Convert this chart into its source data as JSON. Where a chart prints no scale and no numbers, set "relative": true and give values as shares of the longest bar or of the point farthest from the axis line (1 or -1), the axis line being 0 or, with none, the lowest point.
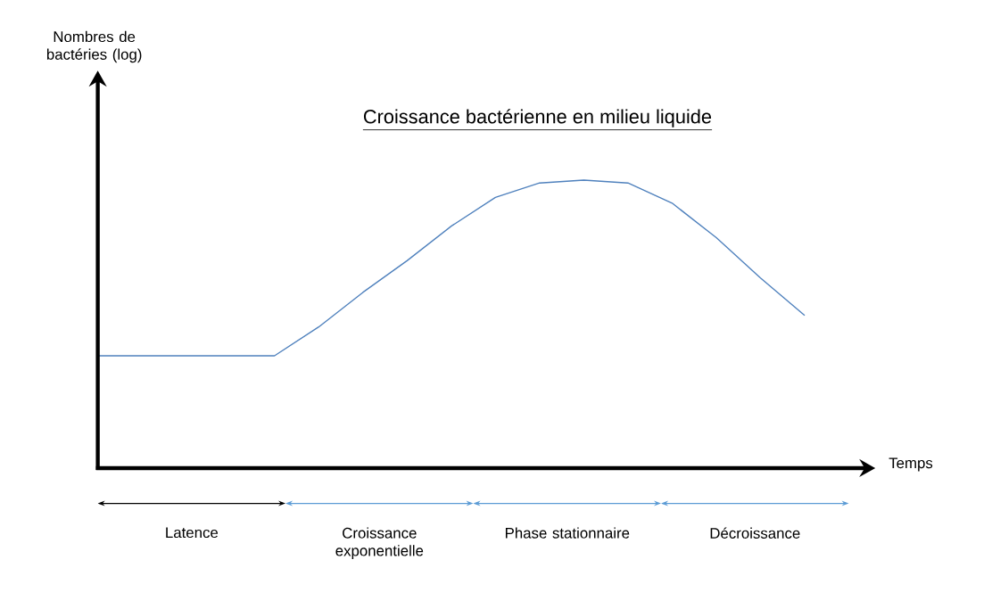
{
  "chart_data": {
    "type": "line",
    "title": "Croissance bactérienne en milieu liquide",
    "xlabel": "Temps",
    "relative": true,
    "categories": [
      null,
      null,
      null,
      null,
      null,
      null,
      null,
      null,
      null,
      null,
      null,
      null,
      null,
      null,
      null,
      null,
      null
    ],
    "series": [
      {
        "color": "#4f81bd",
        "values": [
          0.39,
          0.39,
          0.39,
          0.39,
          0.39,
          0.49,
          0.61,
          0.72,
          0.84,
          0.94,
          0.99,
          1.0,
          0.99,
          0.92,
          0.8,
          0.66,
          0.53
        ]
      }
    ],
    "annotations": [
      "Nombres de bactéries (log)",
      "Latence",
      "Croissance exponentielle",
      "Phase stationnaire",
      "Décroissance"
    ],
    "marker": "none",
    "line_style": "solid"
  }
}
